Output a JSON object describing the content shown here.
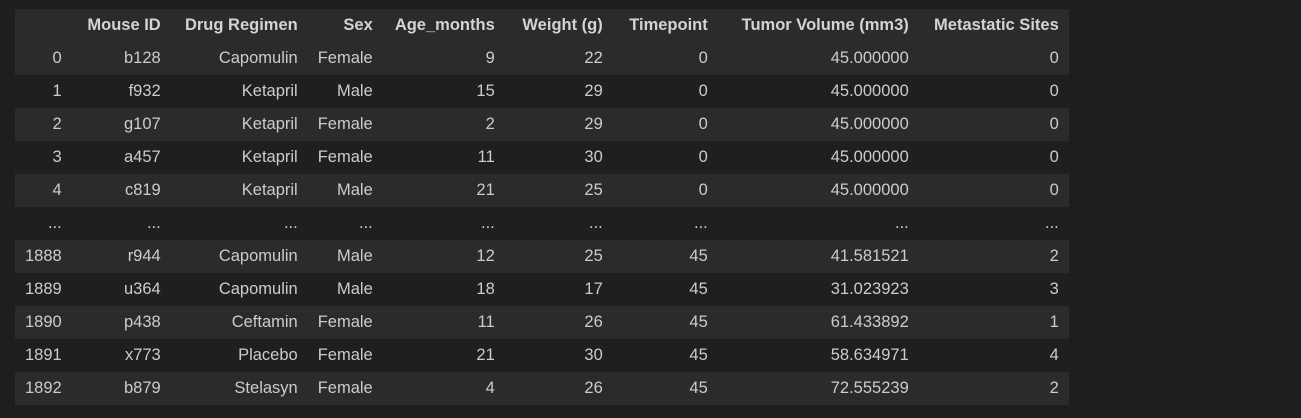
{
  "table": {
    "columns": [
      "",
      "Mouse ID",
      "Drug Regimen",
      "Sex",
      "Age_months",
      "Weight (g)",
      "Timepoint",
      "Tumor Volume (mm3)",
      "Metastatic Sites"
    ],
    "rows": [
      [
        "0",
        "b128",
        "Capomulin",
        "Female",
        "9",
        "22",
        "0",
        "45.000000",
        "0"
      ],
      [
        "1",
        "f932",
        "Ketapril",
        "Male",
        "15",
        "29",
        "0",
        "45.000000",
        "0"
      ],
      [
        "2",
        "g107",
        "Ketapril",
        "Female",
        "2",
        "29",
        "0",
        "45.000000",
        "0"
      ],
      [
        "3",
        "a457",
        "Ketapril",
        "Female",
        "11",
        "30",
        "0",
        "45.000000",
        "0"
      ],
      [
        "4",
        "c819",
        "Ketapril",
        "Male",
        "21",
        "25",
        "0",
        "45.000000",
        "0"
      ],
      [
        "...",
        "...",
        "...",
        "...",
        "...",
        "...",
        "...",
        "...",
        "..."
      ],
      [
        "1888",
        "r944",
        "Capomulin",
        "Male",
        "12",
        "25",
        "45",
        "41.581521",
        "2"
      ],
      [
        "1889",
        "u364",
        "Capomulin",
        "Male",
        "18",
        "17",
        "45",
        "31.023923",
        "3"
      ],
      [
        "1890",
        "p438",
        "Ceftamin",
        "Female",
        "11",
        "26",
        "45",
        "61.433892",
        "1"
      ],
      [
        "1891",
        "x773",
        "Placebo",
        "Female",
        "21",
        "30",
        "45",
        "58.634971",
        "4"
      ],
      [
        "1892",
        "b879",
        "Stelasyn",
        "Female",
        "4",
        "26",
        "45",
        "72.555239",
        "2"
      ]
    ]
  },
  "colors": {
    "background": "#1e1e1e",
    "row_odd": "#2b2b2b",
    "row_even": "#1f1f1f",
    "text": "#cccccc"
  }
}
